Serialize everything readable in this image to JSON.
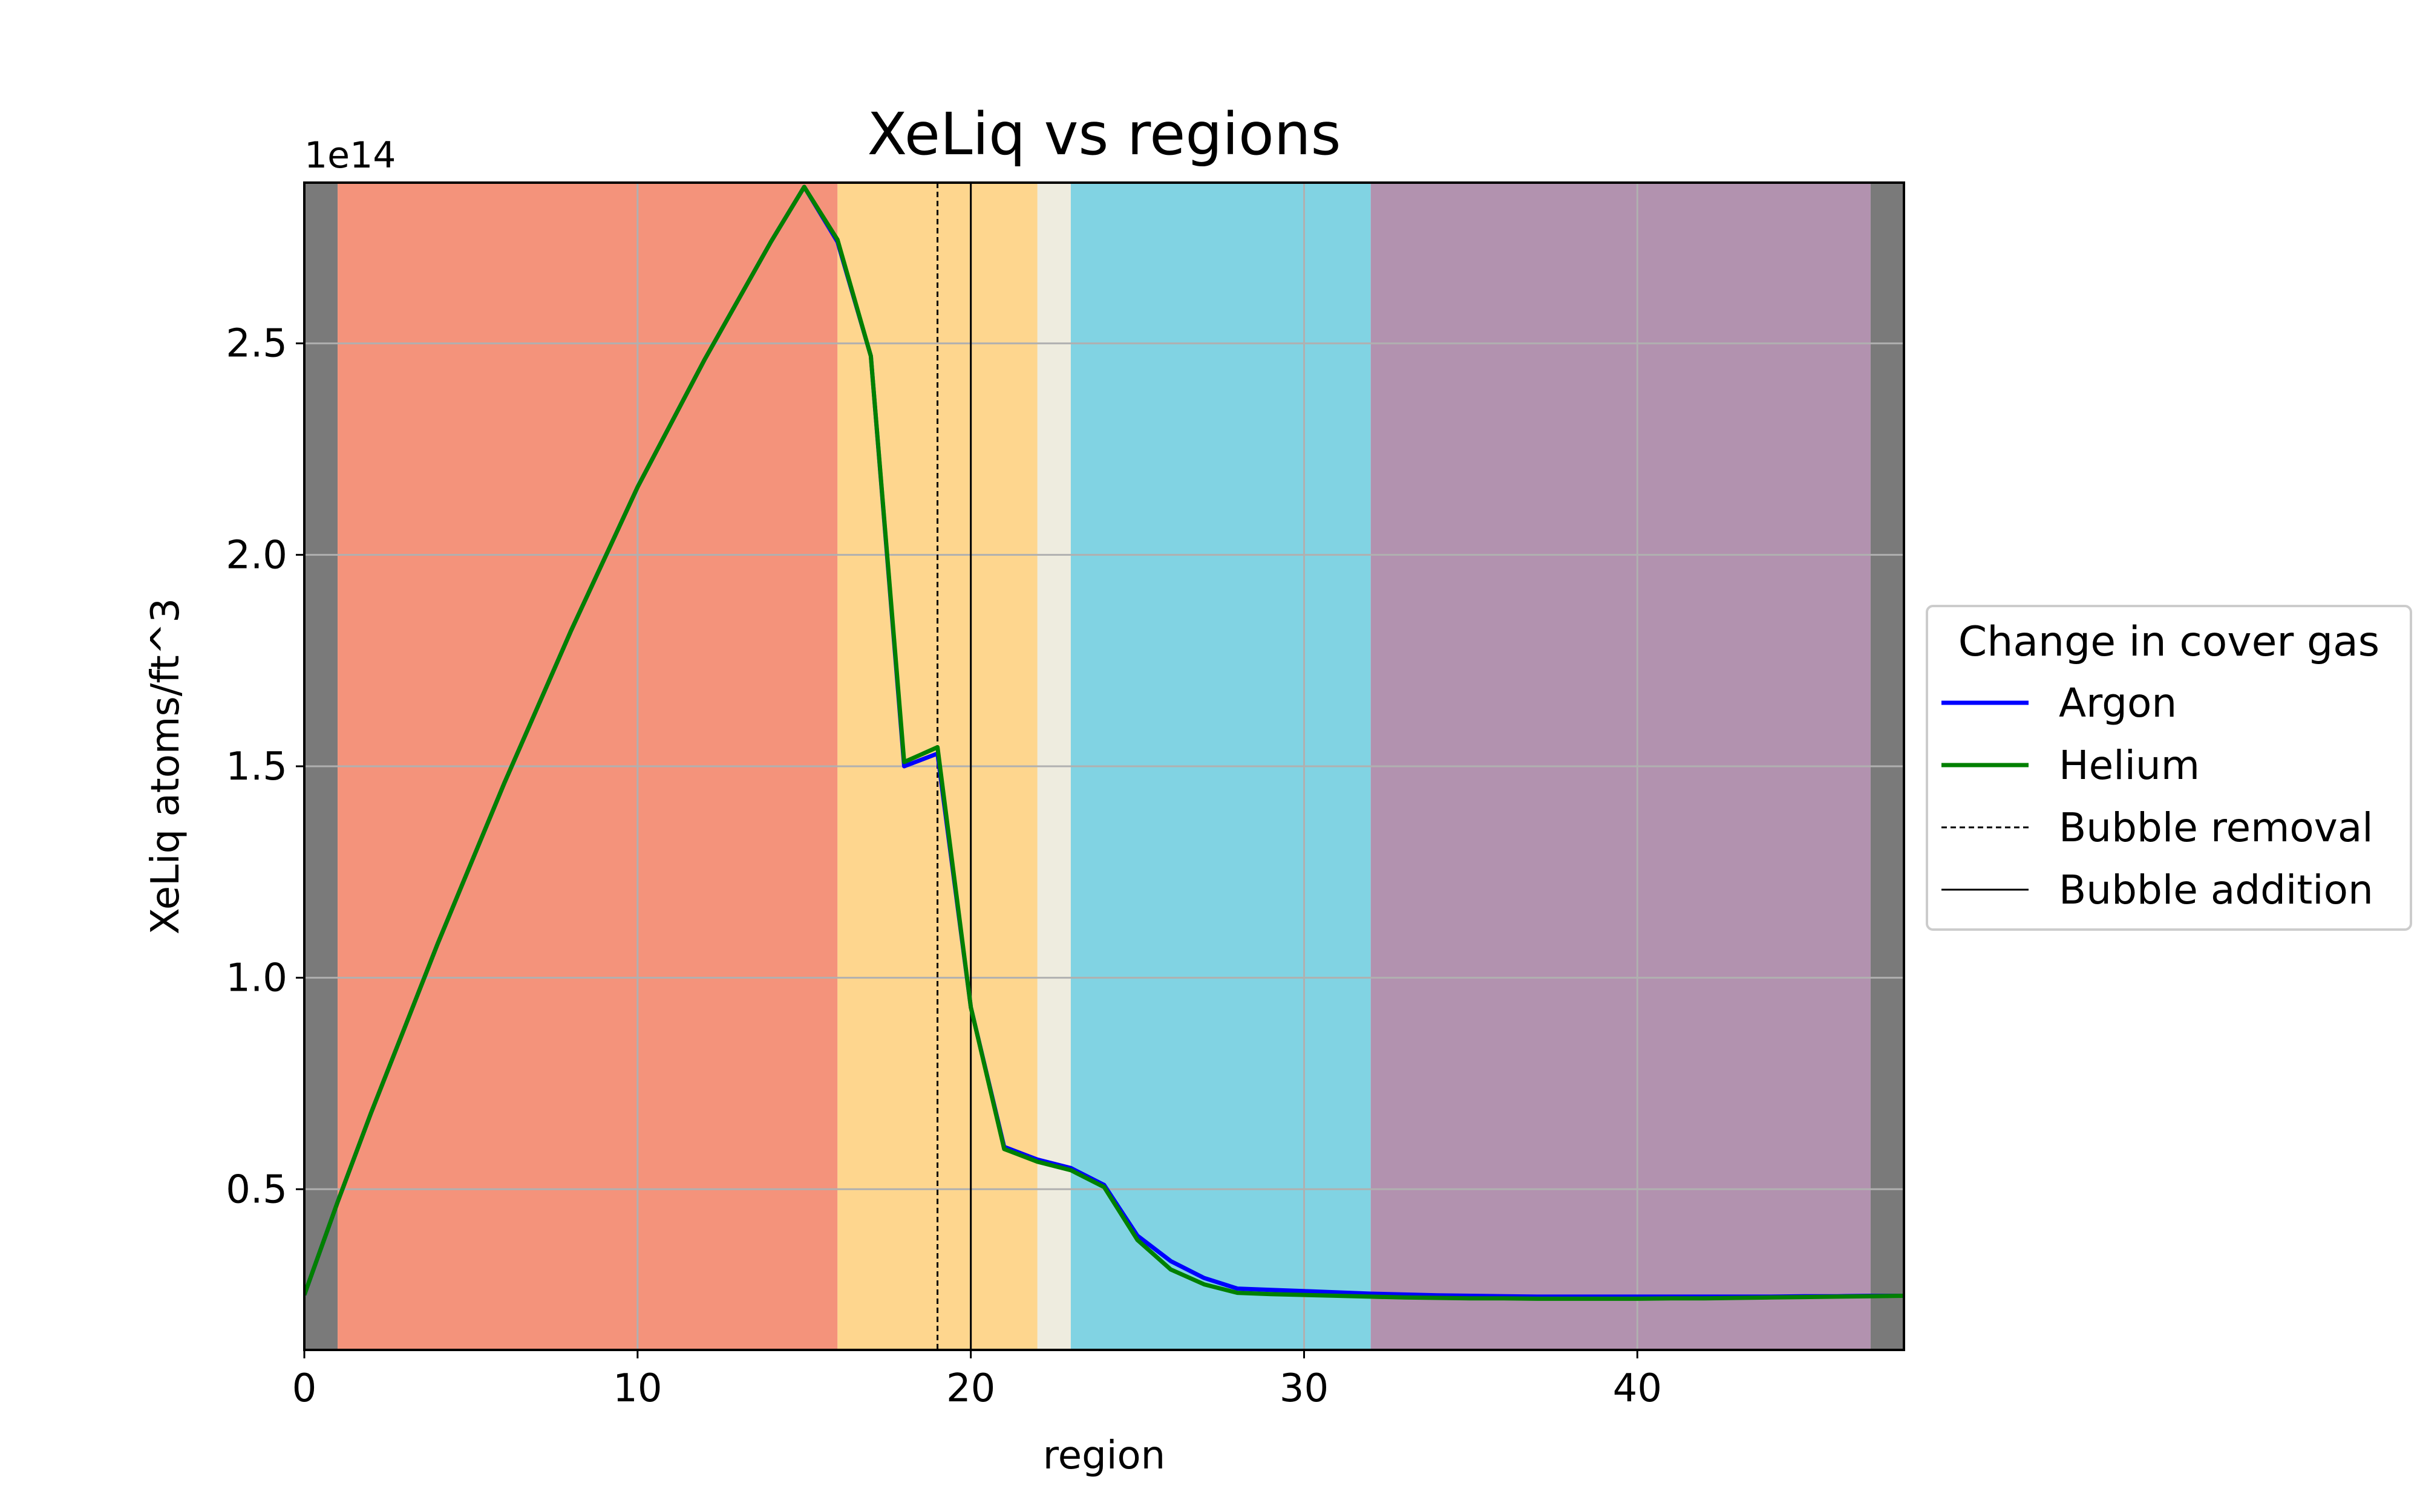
{
  "chart_data": {
    "type": "line",
    "title": "XeLiq vs regions",
    "xlabel": "region",
    "ylabel": "XeLiq atoms/ft^3",
    "y_offset_label": "1e14",
    "xlim": [
      0,
      48
    ],
    "ylim": [
      0.12,
      2.88
    ],
    "xticks": [
      0,
      10,
      20,
      30,
      40
    ],
    "yticks": [
      0.5,
      1.0,
      1.5,
      2.0,
      2.5
    ],
    "xtick_labels": [
      "0",
      "10",
      "20",
      "30",
      "40"
    ],
    "ytick_labels": [
      "0.5",
      "1.0",
      "1.5",
      "2.0",
      "2.5"
    ],
    "grid": true,
    "legend": {
      "title": "Change in cover gas",
      "placement": "right, outside axes",
      "entries": [
        {
          "label": "Argon",
          "color": "#0000ff",
          "style": "solid"
        },
        {
          "label": "Helium",
          "color": "#008000",
          "style": "solid"
        },
        {
          "label": "Bubble removal",
          "color": "#000000",
          "style": "dashed"
        },
        {
          "label": "Bubble addition",
          "color": "#000000",
          "style": "solid"
        }
      ]
    },
    "bands": [
      {
        "x0": 0,
        "x1": 1,
        "color": "#7a7a7a"
      },
      {
        "x0": 1,
        "x1": 16,
        "color": "#f4937b"
      },
      {
        "x0": 16,
        "x1": 22,
        "color": "#fed68e"
      },
      {
        "x0": 22,
        "x1": 23,
        "color": "#eeecdf"
      },
      {
        "x0": 23,
        "x1": 32,
        "color": "#81d3e3"
      },
      {
        "x0": 32,
        "x1": 47,
        "color": "#b292af"
      },
      {
        "x0": 47,
        "x1": 48,
        "color": "#7a7a7a"
      }
    ],
    "vlines": [
      {
        "x": 19,
        "style": "dashed",
        "label": "Bubble removal"
      },
      {
        "x": 20,
        "style": "solid",
        "label": "Bubble addition"
      }
    ],
    "x": [
      0,
      1,
      2,
      3,
      4,
      5,
      6,
      7,
      8,
      9,
      10,
      11,
      12,
      13,
      14,
      15,
      16,
      17,
      18,
      19,
      20,
      21,
      22,
      23,
      24,
      25,
      26,
      27,
      28,
      29,
      30,
      31,
      32,
      33,
      34,
      35,
      36,
      37,
      38,
      39,
      40,
      41,
      42,
      43,
      44,
      45,
      46,
      47,
      48
    ],
    "series": [
      {
        "name": "Argon",
        "color": "#0000ff",
        "values": [
          0.25,
          0.47,
          0.68,
          0.88,
          1.08,
          1.27,
          1.46,
          1.64,
          1.82,
          1.99,
          2.16,
          2.31,
          2.46,
          2.6,
          2.74,
          2.87,
          2.74,
          2.47,
          1.5,
          1.53,
          0.93,
          0.6,
          0.57,
          0.55,
          0.51,
          0.39,
          0.33,
          0.29,
          0.265,
          0.262,
          0.259,
          0.256,
          0.253,
          0.251,
          0.249,
          0.248,
          0.247,
          0.246,
          0.246,
          0.246,
          0.246,
          0.246,
          0.246,
          0.246,
          0.246,
          0.247,
          0.247,
          0.248,
          0.248
        ]
      },
      {
        "name": "Helium",
        "color": "#008000",
        "values": [
          0.25,
          0.47,
          0.68,
          0.88,
          1.08,
          1.27,
          1.46,
          1.64,
          1.82,
          1.99,
          2.16,
          2.31,
          2.46,
          2.6,
          2.74,
          2.87,
          2.745,
          2.47,
          1.51,
          1.545,
          0.93,
          0.595,
          0.565,
          0.545,
          0.505,
          0.38,
          0.31,
          0.275,
          0.255,
          0.252,
          0.25,
          0.248,
          0.246,
          0.244,
          0.243,
          0.242,
          0.242,
          0.241,
          0.241,
          0.241,
          0.241,
          0.242,
          0.242,
          0.243,
          0.244,
          0.245,
          0.246,
          0.247,
          0.248
        ]
      }
    ]
  }
}
